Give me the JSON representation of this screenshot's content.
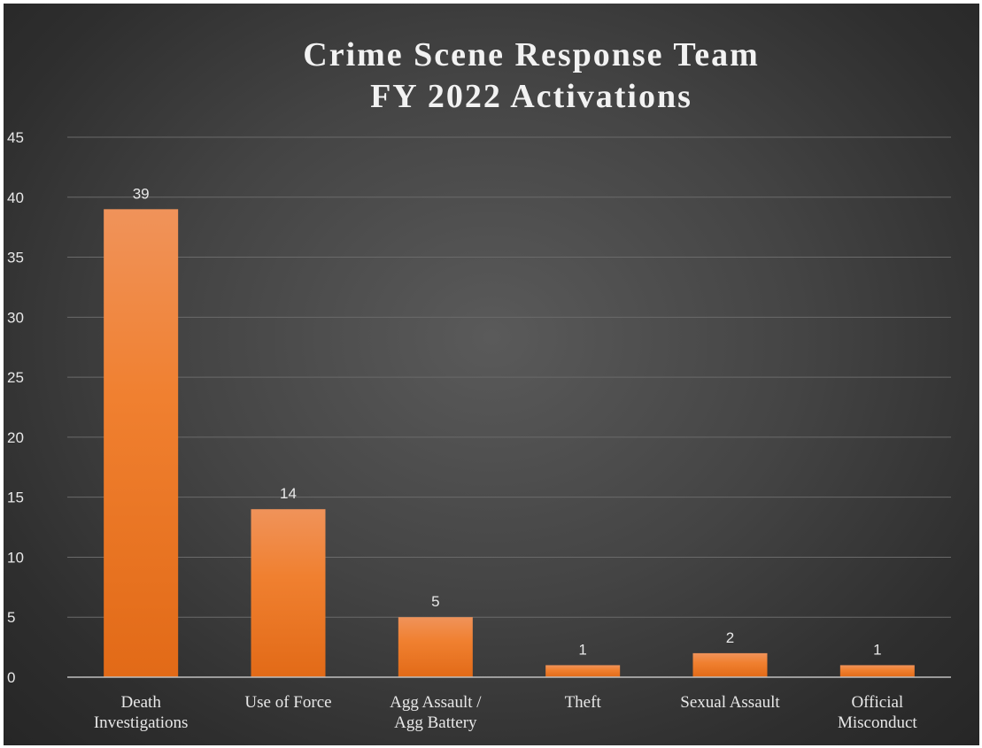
{
  "chart_data": {
    "type": "bar",
    "title_lines": [
      "Crime Scene Response Team",
      "FY 2022 Activations"
    ],
    "categories": [
      [
        "Death",
        "Investigations"
      ],
      [
        "Use of Force"
      ],
      [
        "Agg Assault /",
        "Agg Battery"
      ],
      [
        "Theft"
      ],
      [
        "Sexual Assault"
      ],
      [
        "Official",
        "Misconduct"
      ]
    ],
    "values": [
      39,
      14,
      5,
      1,
      2,
      1
    ],
    "data_labels": [
      "39",
      "14",
      "5",
      "1",
      "2",
      "1"
    ],
    "ylim": [
      0,
      45
    ],
    "yticks": [
      0,
      5,
      10,
      15,
      20,
      25,
      30,
      35,
      40,
      45
    ],
    "ytick_labels": [
      "0",
      "5",
      "10",
      "15",
      "20",
      "25",
      "30",
      "35",
      "40",
      "45"
    ],
    "grid": true,
    "legend": "none",
    "bar_color": "#ED7D31"
  }
}
